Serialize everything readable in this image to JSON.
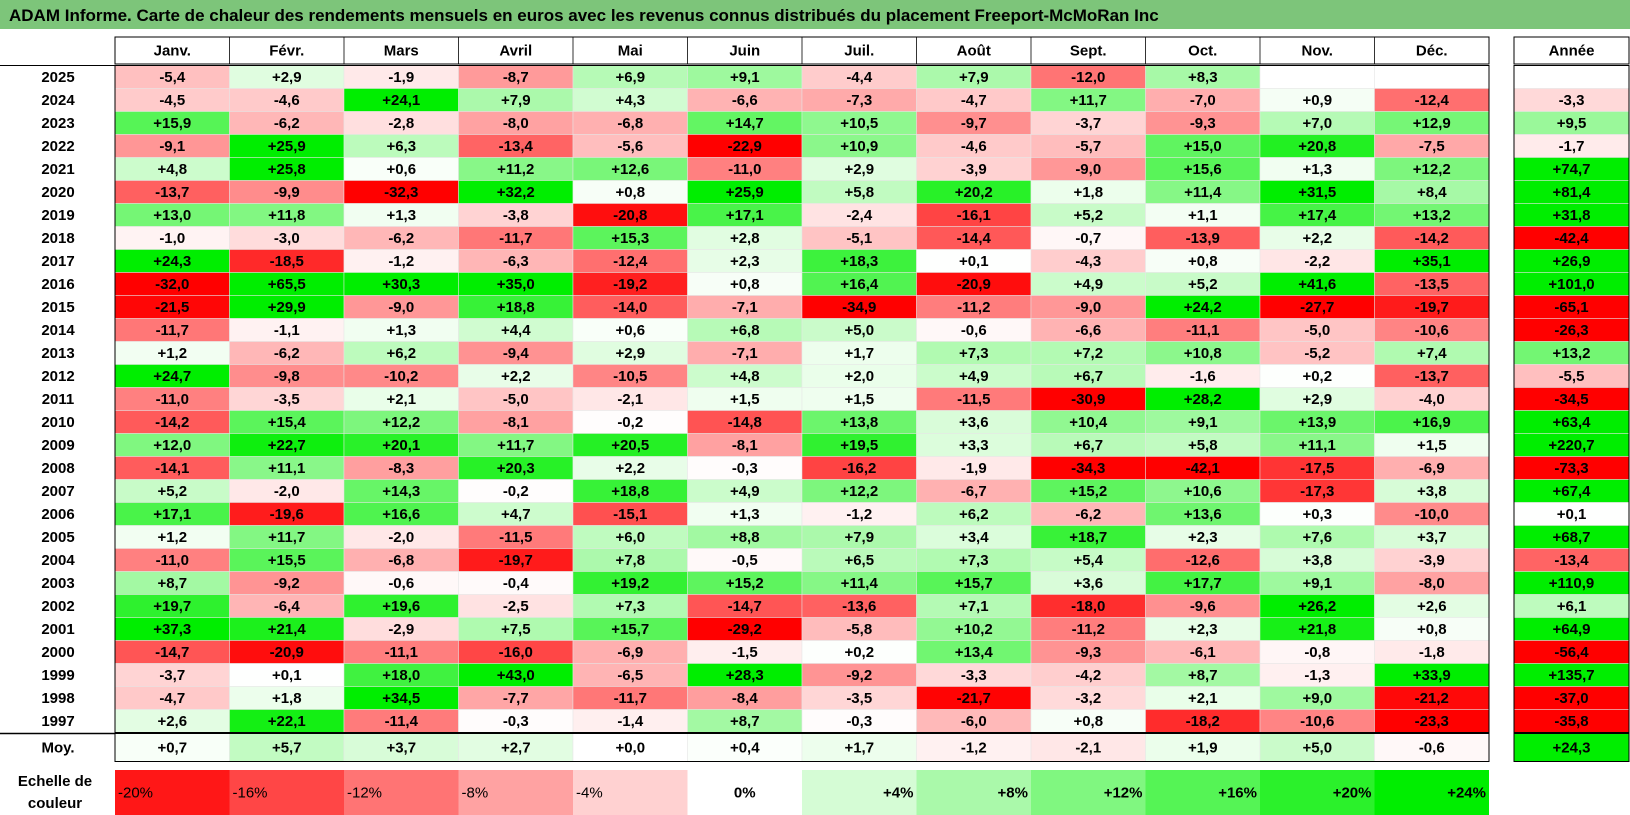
{
  "title": "ADAM Informe. Carte de chaleur des rendements mensuels en euros avec les revenus connus distribués du placement Freeport-McMoRan Inc",
  "chart_data": {
    "type": "heatmap",
    "title": "ADAM Informe. Carte de chaleur des rendements mensuels en euros avec les revenus connus distribués du placement Freeport-McMoRan Inc",
    "months": [
      "Janv.",
      "Févr.",
      "Mars",
      "Avril",
      "Mai",
      "Juin",
      "Juil.",
      "Août",
      "Sept.",
      "Oct.",
      "Nov.",
      "Déc."
    ],
    "year_header": "Année",
    "years": [
      "2025",
      "2024",
      "2023",
      "2022",
      "2021",
      "2020",
      "2019",
      "2018",
      "2017",
      "2016",
      "2015",
      "2014",
      "2013",
      "2012",
      "2011",
      "2010",
      "2009",
      "2008",
      "2007",
      "2006",
      "2005",
      "2004",
      "2003",
      "2002",
      "2001",
      "2000",
      "1999",
      "1998",
      "1997"
    ],
    "values": [
      [
        -5.4,
        2.9,
        -1.9,
        -8.7,
        6.9,
        9.1,
        -4.4,
        7.9,
        -12.0,
        8.3,
        null,
        null
      ],
      [
        -4.5,
        -4.6,
        24.1,
        7.9,
        4.3,
        -6.6,
        -7.3,
        -4.7,
        11.7,
        -7.0,
        0.9,
        -12.4
      ],
      [
        15.9,
        -6.2,
        -2.8,
        -8.0,
        -6.8,
        14.7,
        10.5,
        -9.7,
        -3.7,
        -9.3,
        7.0,
        12.9
      ],
      [
        -9.1,
        25.9,
        6.3,
        -13.4,
        -5.6,
        -22.9,
        10.9,
        -4.6,
        -5.7,
        15.0,
        20.8,
        -7.5
      ],
      [
        4.8,
        25.8,
        0.6,
        11.2,
        12.6,
        -11.0,
        2.9,
        -3.9,
        -9.0,
        15.6,
        1.3,
        12.2
      ],
      [
        -13.7,
        -9.9,
        -32.3,
        32.2,
        0.8,
        25.9,
        5.8,
        20.2,
        1.8,
        11.4,
        31.5,
        8.4
      ],
      [
        13.0,
        11.8,
        1.3,
        -3.8,
        -20.8,
        17.1,
        -2.4,
        -16.1,
        5.2,
        1.1,
        17.4,
        13.2
      ],
      [
        -1.0,
        -3.0,
        -6.2,
        -11.7,
        15.3,
        2.8,
        -5.1,
        -14.4,
        -0.7,
        -13.9,
        2.2,
        -14.2
      ],
      [
        24.3,
        -18.5,
        -1.2,
        -6.3,
        -12.4,
        2.3,
        18.3,
        0.1,
        -4.3,
        0.8,
        -2.2,
        35.1
      ],
      [
        -32.0,
        65.5,
        30.3,
        35.0,
        -19.2,
        0.8,
        16.4,
        -20.9,
        4.9,
        5.2,
        41.6,
        -13.5
      ],
      [
        -21.5,
        29.9,
        -9.0,
        18.8,
        -14.0,
        -7.1,
        -34.9,
        -11.2,
        -9.0,
        24.2,
        -27.7,
        -19.7
      ],
      [
        -11.7,
        -1.1,
        1.3,
        4.4,
        0.6,
        6.8,
        5.0,
        -0.6,
        -6.6,
        -11.1,
        -5.0,
        -10.6
      ],
      [
        1.2,
        -6.2,
        6.2,
        -9.4,
        2.9,
        -7.1,
        1.7,
        7.3,
        7.2,
        10.8,
        -5.2,
        7.4
      ],
      [
        24.7,
        -9.8,
        -10.2,
        2.2,
        -10.5,
        4.8,
        2.0,
        4.9,
        6.7,
        -1.6,
        0.2,
        -13.7
      ],
      [
        -11.0,
        -3.5,
        2.1,
        -5.0,
        -2.1,
        1.5,
        1.5,
        -11.5,
        -30.9,
        28.2,
        2.9,
        -4.0
      ],
      [
        -14.2,
        15.4,
        12.2,
        -8.1,
        -0.2,
        -14.8,
        13.8,
        3.6,
        10.4,
        9.1,
        13.9,
        16.9
      ],
      [
        12.0,
        22.7,
        20.1,
        11.7,
        20.5,
        -8.1,
        19.5,
        3.3,
        6.7,
        5.8,
        11.1,
        1.5
      ],
      [
        -14.1,
        11.1,
        -8.3,
        20.3,
        2.2,
        -0.3,
        -16.2,
        -1.9,
        -34.3,
        -42.1,
        -17.5,
        -6.9
      ],
      [
        5.2,
        -2.0,
        14.3,
        -0.2,
        18.8,
        4.9,
        12.2,
        -6.7,
        15.2,
        10.6,
        -17.3,
        3.8
      ],
      [
        17.1,
        -19.6,
        16.6,
        4.7,
        -15.1,
        1.3,
        -1.2,
        6.2,
        -6.2,
        13.6,
        0.3,
        -10.0
      ],
      [
        1.2,
        11.7,
        -2.0,
        -11.5,
        6.0,
        8.8,
        7.9,
        3.4,
        18.7,
        2.3,
        7.6,
        3.7
      ],
      [
        -11.0,
        15.5,
        -6.8,
        -19.7,
        7.8,
        -0.5,
        6.5,
        7.3,
        5.4,
        -12.6,
        3.8,
        -3.9
      ],
      [
        8.7,
        -9.2,
        -0.6,
        -0.4,
        19.2,
        15.2,
        11.4,
        15.7,
        3.6,
        17.7,
        9.1,
        -8.0
      ],
      [
        19.7,
        -6.4,
        19.6,
        -2.5,
        7.3,
        -14.7,
        -13.6,
        7.1,
        -18.0,
        -9.6,
        26.2,
        2.6
      ],
      [
        37.3,
        21.4,
        -2.9,
        7.5,
        15.7,
        -29.2,
        -5.8,
        10.2,
        -11.2,
        2.3,
        21.8,
        0.8
      ],
      [
        -14.7,
        -20.9,
        -11.1,
        -16.0,
        -6.9,
        -1.5,
        0.2,
        13.4,
        -9.3,
        -6.1,
        -0.8,
        -1.8
      ],
      [
        -3.7,
        0.1,
        18.0,
        43.0,
        -6.5,
        28.3,
        -9.2,
        -3.3,
        -4.2,
        8.7,
        -1.3,
        33.9
      ],
      [
        -4.7,
        1.8,
        34.5,
        -7.7,
        -11.7,
        -8.4,
        -3.5,
        -21.7,
        -3.2,
        2.1,
        9.0,
        -21.2
      ],
      [
        2.6,
        22.1,
        -11.4,
        -0.3,
        -1.4,
        8.7,
        -0.3,
        -6.0,
        0.8,
        -18.2,
        -10.6,
        -23.3
      ]
    ],
    "annual": [
      null,
      -3.3,
      9.5,
      -1.7,
      74.7,
      81.4,
      31.8,
      -42.4,
      26.9,
      101.0,
      -65.1,
      -26.3,
      13.2,
      -5.5,
      -34.5,
      63.4,
      220.7,
      -73.3,
      67.4,
      0.1,
      68.7,
      -13.4,
      110.9,
      6.1,
      64.9,
      -56.4,
      135.7,
      -37.0,
      -35.8
    ],
    "average_label": "Moy.",
    "averages": [
      0.7,
      5.7,
      3.7,
      2.7,
      0.0,
      0.4,
      1.7,
      -1.2,
      -2.1,
      1.9,
      5.0,
      -0.6
    ],
    "average_annual": 24.3,
    "scale": {
      "label_line1": "Echelle de",
      "label_line2": "couleur",
      "steps": [
        "-20%",
        "-16%",
        "-12%",
        "-8%",
        "-4%",
        "0%",
        "+4%",
        "+8%",
        "+12%",
        "+16%",
        "+20%",
        "+24%"
      ],
      "values": [
        -20,
        -16,
        -12,
        -8,
        -4,
        0,
        4,
        8,
        12,
        16,
        20,
        24
      ]
    },
    "colors": {
      "negative": "#ff0000",
      "neutral": "#ffffff",
      "positive": "#00ee00"
    }
  }
}
